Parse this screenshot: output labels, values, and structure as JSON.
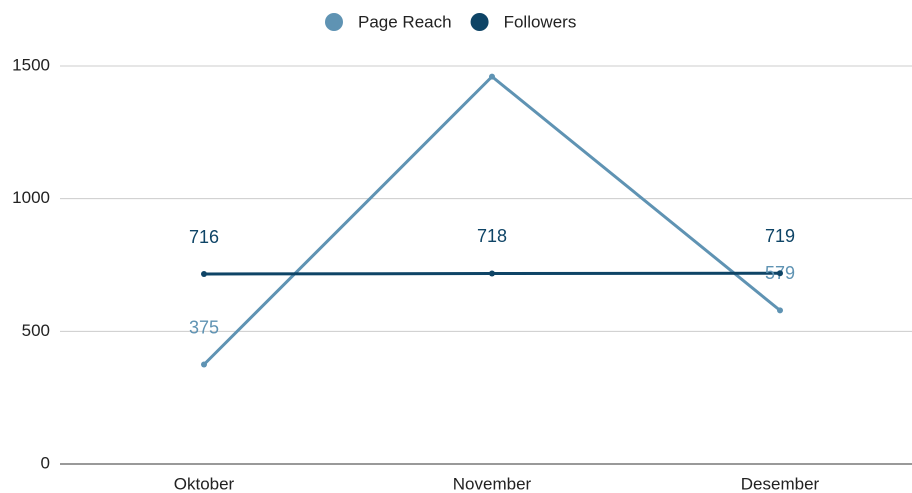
{
  "chart_data": {
    "type": "line",
    "categories": [
      "Oktober",
      "November",
      "Desember"
    ],
    "series": [
      {
        "name": "Page Reach",
        "color": "#5f93b3",
        "values": [
          375,
          1460,
          579
        ],
        "value_labels": [
          "375",
          null,
          "579"
        ]
      },
      {
        "name": "Followers",
        "color": "#0e4466",
        "values": [
          716,
          718,
          719
        ],
        "value_labels": [
          "716",
          "718",
          "719"
        ]
      }
    ],
    "ylim": [
      0,
      1500
    ],
    "yticks": [
      0,
      500,
      1000,
      1500
    ],
    "grid": true,
    "legend": "top"
  }
}
